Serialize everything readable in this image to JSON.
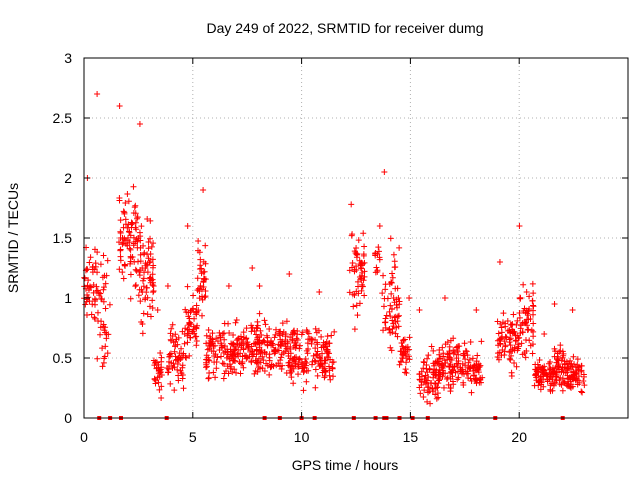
{
  "chart_data": {
    "type": "scatter",
    "title": "Day 249 of 2022, SRMTID for receiver dumg",
    "xlabel": "GPS time / hours",
    "ylabel": "SRMTID / TECUs",
    "xlim": [
      0,
      25
    ],
    "ylim": [
      0,
      3
    ],
    "xticks": [
      0,
      5,
      10,
      15,
      20
    ],
    "yticks": [
      0,
      0.5,
      1,
      1.5,
      2,
      2.5,
      3
    ],
    "xtick_labels": [
      "0",
      "5",
      "10",
      "15",
      "20"
    ],
    "ytick_labels": [
      "0",
      "0.5",
      "1",
      "1.5",
      "2",
      "2.5",
      "3"
    ],
    "grid": true,
    "marker": "+",
    "color": "#ff0000",
    "series": [
      {
        "name": "SRMTID",
        "segments": [
          {
            "x_range": [
              0.0,
              0.6
            ],
            "center": 1.1,
            "spread": 0.45,
            "max": 2.0,
            "count": 45
          },
          {
            "x_range": [
              0.6,
              1.2
            ],
            "center": 0.9,
            "spread": 0.7,
            "max": 2.7,
            "count": 40
          },
          {
            "x_range": [
              1.6,
              2.5
            ],
            "center": 1.5,
            "spread": 0.6,
            "max": 2.6,
            "count": 80
          },
          {
            "x_range": [
              2.5,
              3.2
            ],
            "center": 1.2,
            "spread": 0.7,
            "max": 2.45,
            "count": 70
          },
          {
            "x_range": [
              3.2,
              3.6
            ],
            "center": 0.4,
            "spread": 0.3,
            "max": 0.9,
            "count": 30
          },
          {
            "x_range": [
              3.8,
              4.6
            ],
            "center": 0.5,
            "spread": 0.35,
            "max": 1.1,
            "count": 55
          },
          {
            "x_range": [
              4.6,
              5.2
            ],
            "center": 0.8,
            "spread": 0.4,
            "max": 1.6,
            "count": 50
          },
          {
            "x_range": [
              5.2,
              5.6
            ],
            "center": 1.2,
            "spread": 0.45,
            "max": 1.9,
            "count": 35
          },
          {
            "x_range": [
              5.6,
              7.0
            ],
            "center": 0.55,
            "spread": 0.3,
            "max": 1.1,
            "count": 110
          },
          {
            "x_range": [
              7.0,
              8.0
            ],
            "center": 0.6,
            "spread": 0.3,
            "max": 1.25,
            "count": 80
          },
          {
            "x_range": [
              8.0,
              9.2
            ],
            "center": 0.6,
            "spread": 0.3,
            "max": 1.1,
            "count": 90
          },
          {
            "x_range": [
              9.2,
              10.5
            ],
            "center": 0.55,
            "spread": 0.35,
            "max": 1.2,
            "count": 100
          },
          {
            "x_range": [
              10.5,
              11.5
            ],
            "center": 0.5,
            "spread": 0.35,
            "max": 1.05,
            "count": 75
          },
          {
            "x_range": [
              12.2,
              12.9
            ],
            "center": 1.2,
            "spread": 0.5,
            "max": 1.78,
            "count": 55
          },
          {
            "x_range": [
              13.3,
              13.6
            ],
            "center": 1.3,
            "spread": 0.2,
            "max": 1.6,
            "count": 12
          },
          {
            "x_range": [
              13.7,
              14.5
            ],
            "center": 1.0,
            "spread": 0.6,
            "max": 2.05,
            "count": 60
          },
          {
            "x_range": [
              14.5,
              15.0
            ],
            "center": 0.5,
            "spread": 0.3,
            "max": 1.0,
            "count": 35
          },
          {
            "x_range": [
              15.4,
              16.3
            ],
            "center": 0.35,
            "spread": 0.3,
            "max": 0.9,
            "count": 75
          },
          {
            "x_range": [
              16.3,
              17.5
            ],
            "center": 0.45,
            "spread": 0.3,
            "max": 1.0,
            "count": 100
          },
          {
            "x_range": [
              17.5,
              18.3
            ],
            "center": 0.4,
            "spread": 0.3,
            "max": 0.9,
            "count": 55
          },
          {
            "x_range": [
              19.0,
              20.0
            ],
            "center": 0.65,
            "spread": 0.35,
            "max": 1.3,
            "count": 75
          },
          {
            "x_range": [
              20.0,
              20.7
            ],
            "center": 0.8,
            "spread": 0.4,
            "max": 1.6,
            "count": 55
          },
          {
            "x_range": [
              20.7,
              21.6
            ],
            "center": 0.35,
            "spread": 0.2,
            "max": 0.7,
            "count": 80
          },
          {
            "x_range": [
              21.6,
              22.2
            ],
            "center": 0.45,
            "spread": 0.3,
            "max": 0.95,
            "count": 55
          },
          {
            "x_range": [
              22.2,
              23.0
            ],
            "center": 0.35,
            "spread": 0.2,
            "max": 0.9,
            "count": 65
          }
        ],
        "zero_points": [
          0.7,
          1.2,
          1.7,
          3.8,
          8.3,
          9.0,
          10.0,
          10.6,
          12.4,
          13.4,
          13.8,
          13.9,
          14.5,
          15.1,
          15.8,
          18.9,
          22.0
        ]
      }
    ]
  }
}
